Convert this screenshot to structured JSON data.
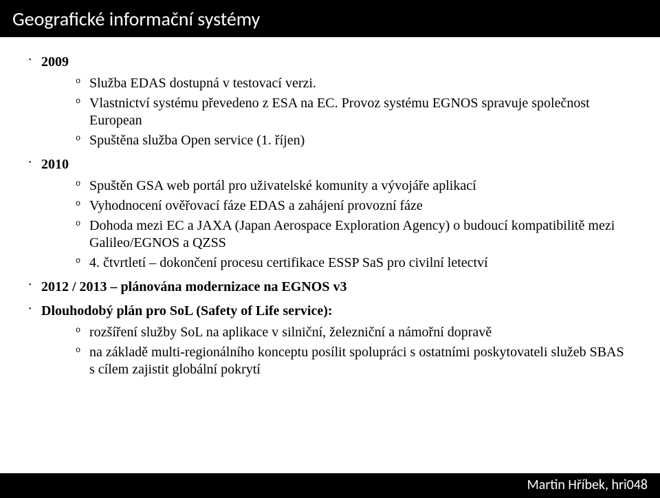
{
  "header": {
    "title": "Geografické informační systémy"
  },
  "content": {
    "items": [
      {
        "label": "2009",
        "bold": true,
        "sub": [
          "Služba EDAS dostupná v testovací verzi.",
          "Vlastnictví systému převedeno z ESA na EC. Provoz systému EGNOS spravuje společnost European",
          "Spuštěna služba Open service (1. říjen)"
        ]
      },
      {
        "label": "2010",
        "bold": true,
        "sub": [
          "Spuštěn GSA web portál pro uživatelské komunity a vývojáře aplikací",
          "Vyhodnocení ověřovací fáze EDAS a zahájení provozní fáze",
          "Dohoda mezi EC a JAXA (Japan Aerospace Exploration Agency) o budoucí kompatibilitě mezi Galileo/EGNOS a QZSS",
          "4. čtvrtletí – dokončení procesu certifikace ESSP SaS pro civilní letectví"
        ]
      },
      {
        "label": "2012 / 2013 – plánována modernizace na EGNOS v3",
        "bold": true,
        "sub": []
      },
      {
        "label": "Dlouhodobý plán pro SoL (Safety of Life service):",
        "bold": true,
        "sub": [
          "rozšíření služby SoL na aplikace v silniční, železniční a námořní dopravě",
          "na základě multi-regionálního konceptu posílit spolupráci s ostatními poskytovateli služeb SBAS s cílem zajistit globální pokrytí"
        ]
      }
    ]
  },
  "footer": {
    "text": "Martin Hříbek, hri048"
  }
}
